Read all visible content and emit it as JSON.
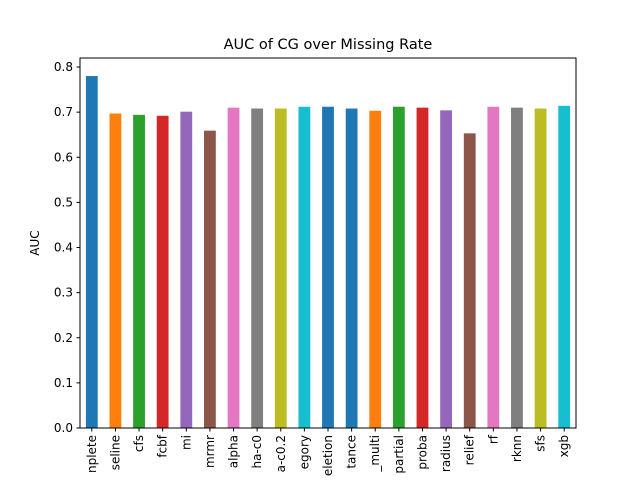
{
  "chart_data": {
    "type": "bar",
    "title": "AUC of CG over Missing Rate",
    "xlabel": "",
    "ylabel": "AUC",
    "ylim": [
      0,
      0.82
    ],
    "yticks": [
      "0.0",
      "0.1",
      "0.2",
      "0.3",
      "0.4",
      "0.5",
      "0.6",
      "0.7",
      "0.8"
    ],
    "grid": false,
    "categories": [
      "nplete",
      "seline",
      "cfs",
      "fcbf",
      "mi",
      "mrmr",
      "alpha",
      "ha-c0",
      "a-c0.2",
      "egory",
      "eletion",
      "tance",
      "_multi",
      "partial",
      "proba",
      "radius",
      "relief",
      "rf",
      "rknn",
      "sfs",
      "xgb"
    ],
    "values": [
      0.78,
      0.697,
      0.694,
      0.692,
      0.701,
      0.659,
      0.71,
      0.708,
      0.708,
      0.712,
      0.712,
      0.708,
      0.703,
      0.712,
      0.71,
      0.704,
      0.653,
      0.712,
      0.71,
      0.708,
      0.714
    ],
    "colors": [
      "#1f77b4",
      "#ff7f0e",
      "#2ca02c",
      "#d62728",
      "#9467bd",
      "#8c564b",
      "#e377c2",
      "#7f7f7f",
      "#bcbd22",
      "#17becf",
      "#1f77b4",
      "#1f77b4",
      "#ff7f0e",
      "#2ca02c",
      "#d62728",
      "#9467bd",
      "#8c564b",
      "#e377c2",
      "#7f7f7f",
      "#bcbd22",
      "#17becf"
    ]
  }
}
